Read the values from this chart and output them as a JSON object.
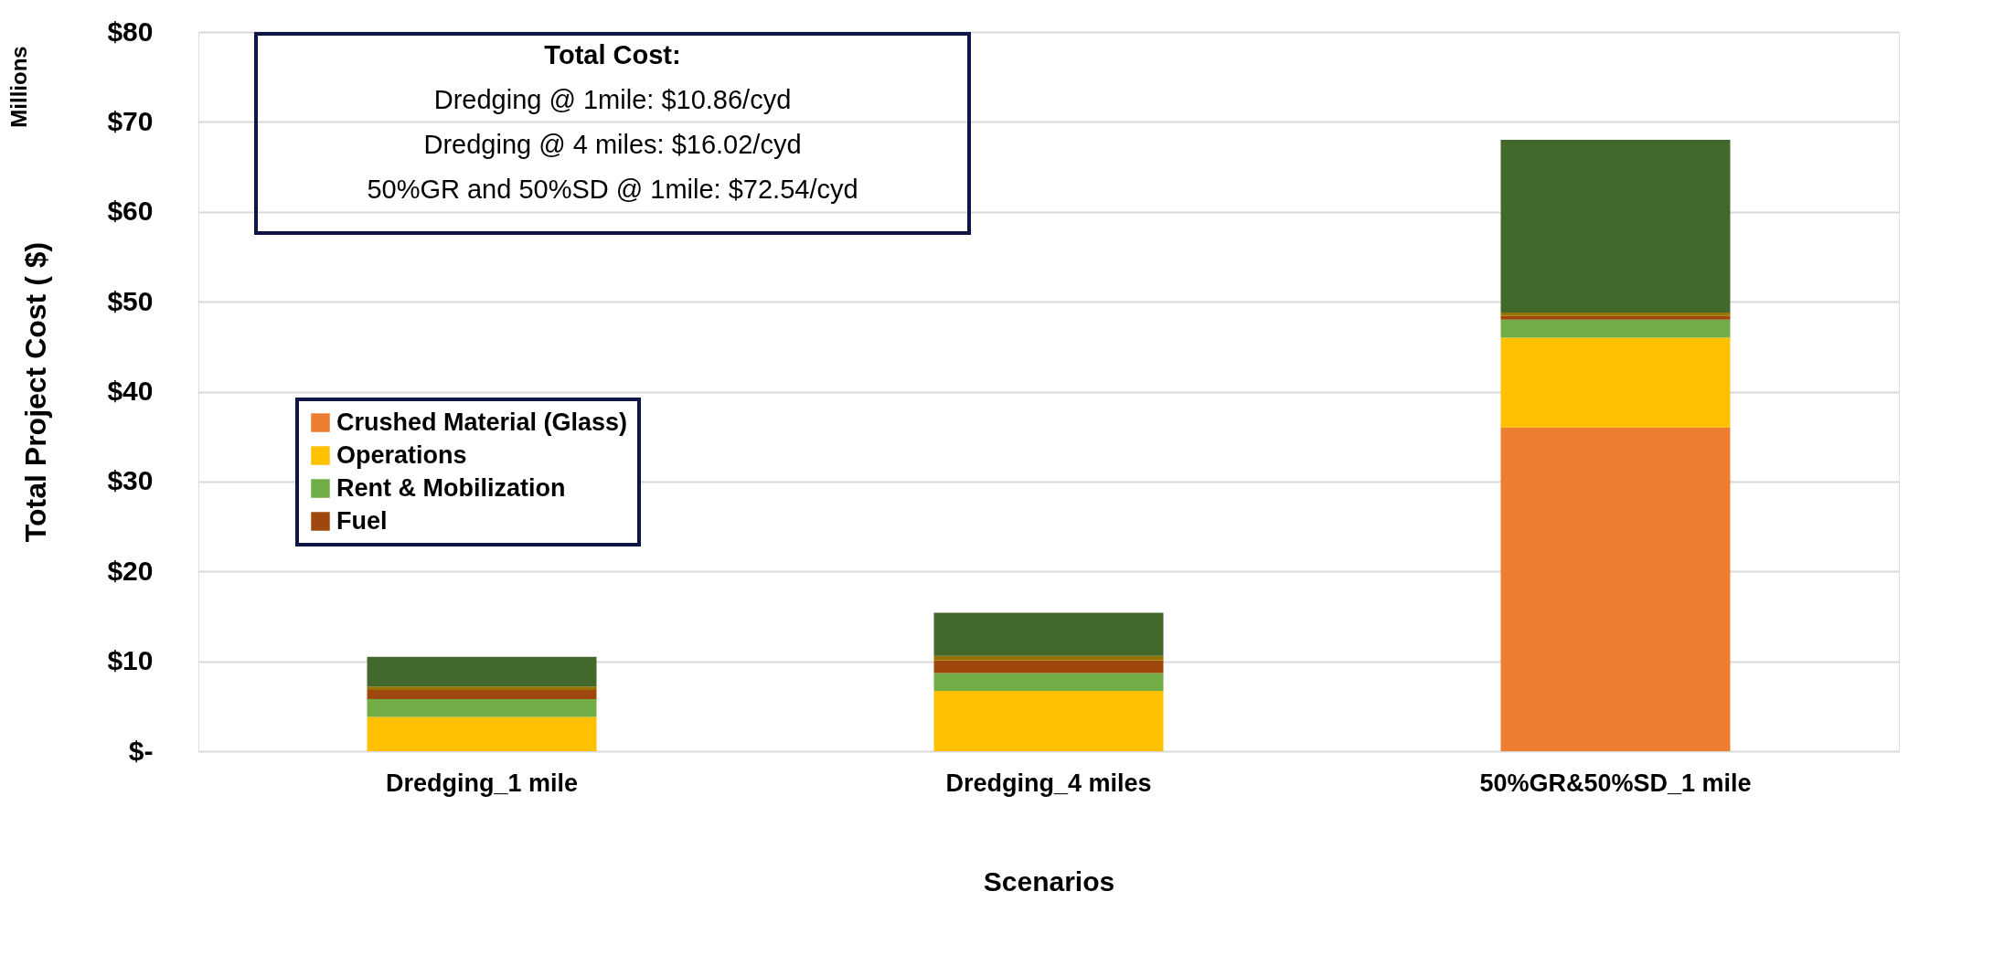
{
  "chart_data": {
    "type": "bar",
    "stacked": true,
    "categories": [
      "Dredging_1 mile",
      "Dredging_4 miles",
      "50%GR&50%SD_1 mile"
    ],
    "series": [
      {
        "name": "Crushed Material (Glass)",
        "color": "#ed7d31",
        "values": [
          0,
          0,
          36.0
        ]
      },
      {
        "name": "Operations",
        "color": "#ffc000",
        "values": [
          3.8,
          6.7,
          10.0
        ]
      },
      {
        "name": "Rent & Mobilization",
        "color": "#70ad47",
        "values": [
          2.0,
          2.0,
          2.0
        ]
      },
      {
        "name": "Fuel",
        "color": "#9e480e",
        "values": [
          1.0,
          1.4,
          0.4
        ]
      },
      {
        "color": "#997300",
        "values": [
          0.4,
          0.5,
          0.4
        ]
      },
      {
        "color": "#43682b",
        "values": [
          3.3,
          4.8,
          19.2
        ]
      }
    ],
    "ylabel": "Total Project Cost ( $)",
    "xlabel": "Scenarios",
    "ylim": [
      0,
      80
    ],
    "yticks": [
      {
        "value": 0,
        "label": "$-"
      },
      {
        "value": 10,
        "label": "$10"
      },
      {
        "value": 20,
        "label": "$20"
      },
      {
        "value": 30,
        "label": "$30"
      },
      {
        "value": 40,
        "label": "$40"
      },
      {
        "value": 50,
        "label": "$50"
      },
      {
        "value": 60,
        "label": "$60"
      },
      {
        "value": 70,
        "label": "$70"
      },
      {
        "value": 80,
        "label": "$80"
      }
    ],
    "grid": "y",
    "legend": "left",
    "annotations": [
      "Millions",
      "Total Cost:",
      "Dredging @ 1mile: $10.86/cyd",
      "Dredging @ 4 miles: $16.02/cyd",
      "50%GR and 50%SD @ 1mile: $72.54/cyd"
    ]
  }
}
